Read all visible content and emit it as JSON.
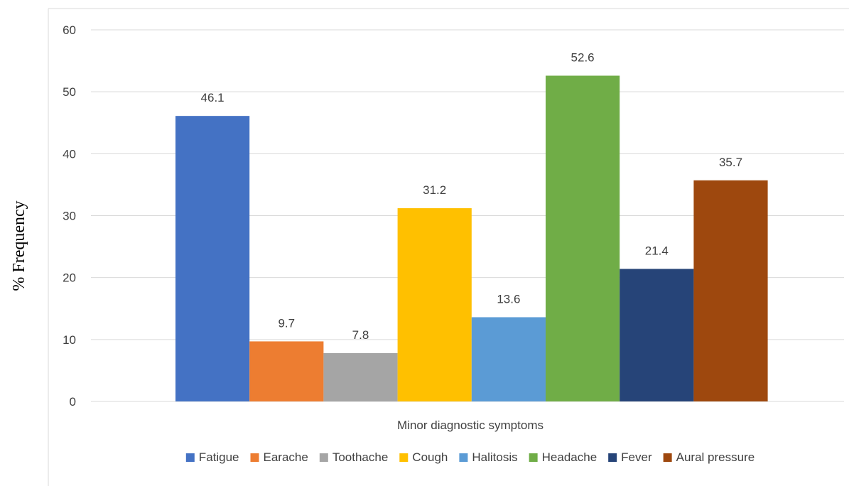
{
  "chart_data": {
    "type": "bar",
    "categories": [
      "Minor diagnostic symptoms"
    ],
    "series": [
      {
        "name": "Fatigue",
        "values": [
          46.1
        ],
        "color": "#4472C4",
        "label": "46.1"
      },
      {
        "name": "Earache",
        "values": [
          9.7
        ],
        "color": "#ED7D31",
        "label": "9.7"
      },
      {
        "name": "Toothache",
        "values": [
          7.8
        ],
        "color": "#A5A5A5",
        "label": "7.8"
      },
      {
        "name": "Cough",
        "values": [
          31.2
        ],
        "color": "#FFC000",
        "label": "31.2"
      },
      {
        "name": "Halitosis",
        "values": [
          13.6
        ],
        "color": "#5B9BD5",
        "label": "13.6"
      },
      {
        "name": "Headache",
        "values": [
          52.6
        ],
        "color": "#70AD47",
        "label": "52.6"
      },
      {
        "name": "Fever",
        "values": [
          21.4
        ],
        "color": "#264478",
        "label": "21.4"
      },
      {
        "name": "Aural pressure",
        "values": [
          35.7
        ],
        "color": "#9E480E",
        "label": "35.7"
      }
    ],
    "xlabel": "Minor diagnostic symptoms",
    "ylabel": "% Frequency",
    "ylim": [
      0,
      60
    ],
    "yticks": [
      "0",
      "10",
      "20",
      "30",
      "40",
      "50",
      "60"
    ],
    "grid": true,
    "legend_position": "bottom"
  }
}
